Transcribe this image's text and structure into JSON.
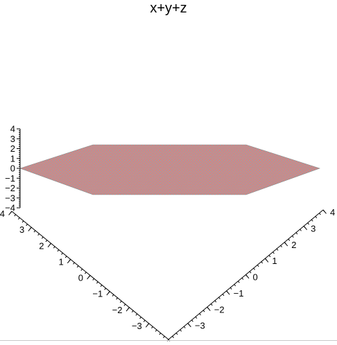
{
  "chart_data": {
    "type": "surface3d",
    "title": "x+y+z",
    "surface_color": "#e8797b",
    "mesh_color": "#a0a0a0",
    "z_axis": {
      "range": [
        -4,
        4
      ],
      "ticks": [
        4,
        3,
        2,
        1,
        0,
        -1,
        -2,
        -3,
        -4
      ],
      "tick_labels": [
        "4",
        "3",
        "2",
        "1",
        "0",
        "−1",
        "−2",
        "−3",
        "−4"
      ]
    },
    "x_axis": {
      "range": [
        -4,
        4
      ],
      "ticks": [
        4,
        3,
        2,
        1,
        0,
        -1,
        -2,
        -3
      ],
      "tick_labels": [
        "4",
        "3",
        "2",
        "1",
        "0",
        "−1",
        "−2",
        "−3"
      ]
    },
    "y_axis": {
      "range": [
        -4,
        4
      ],
      "ticks": [
        4,
        3,
        2,
        1,
        0,
        -1,
        -2,
        -3
      ],
      "tick_labels": [
        "4",
        "3",
        "2",
        "1",
        "0",
        "−1",
        "−2",
        "−3"
      ]
    },
    "grid": false,
    "legend": "none"
  }
}
